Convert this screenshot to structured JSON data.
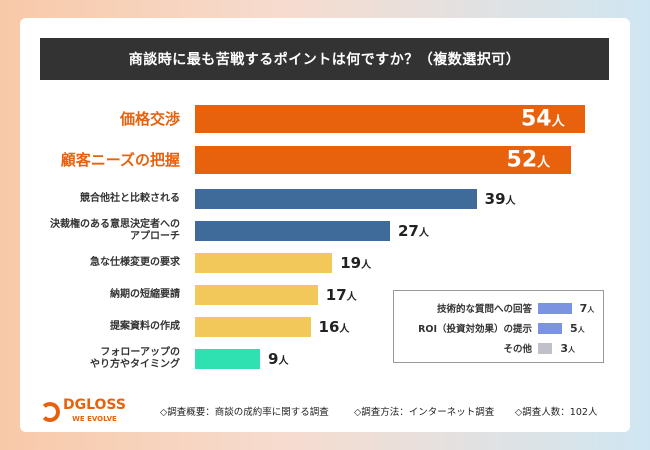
{
  "title": "商談時に最も苦戦するポイントは何ですか？（複数選択可）",
  "chart_data": {
    "type": "bar",
    "orientation": "horizontal",
    "title": "商談時に最も苦戦するポイントは何ですか？（複数選択可）",
    "unit": "人",
    "categories": [
      "価格交渉",
      "顧客ニーズの把握",
      "競合他社と比較される",
      "決裁権のある意思決定者へのアプローチ",
      "急な仕様変更の要求",
      "納期の短縮要請",
      "提案資料の作成",
      "フォローアップのやり方やタイミング"
    ],
    "values": [
      54,
      52,
      39,
      27,
      19,
      17,
      16,
      9
    ],
    "colors": [
      "#e8620e",
      "#e8620e",
      "#3e6b9a",
      "#3e6b9a",
      "#f2c85b",
      "#f2c85b",
      "#f2c85b",
      "#2fe0b0"
    ],
    "label_lines": [
      [
        "価格交渉"
      ],
      [
        "顧客ニーズの把握"
      ],
      [
        "競合他社と比較される"
      ],
      [
        "決裁権のある意思決定者への",
        "アプローチ"
      ],
      [
        "急な仕様変更の要求"
      ],
      [
        "納期の短縮要請"
      ],
      [
        "提案資料の作成"
      ],
      [
        "フォローアップの",
        "やり方やタイミング"
      ]
    ],
    "others": {
      "categories": [
        "技術的な質問への回答",
        "ROI（投資対効果）の提示",
        "その他"
      ],
      "values": [
        7,
        5,
        3
      ],
      "colors": [
        "#7b93e0",
        "#7b93e0",
        "#c0c0c8"
      ]
    }
  },
  "logo": {
    "name": "DGLOSS",
    "tagline": "WE EVOLVE"
  },
  "footer": [
    "◇調査概要：商談の成約率に関する調査",
    "◇調査方法：インターネット調査",
    "◇調査人数：102人"
  ]
}
